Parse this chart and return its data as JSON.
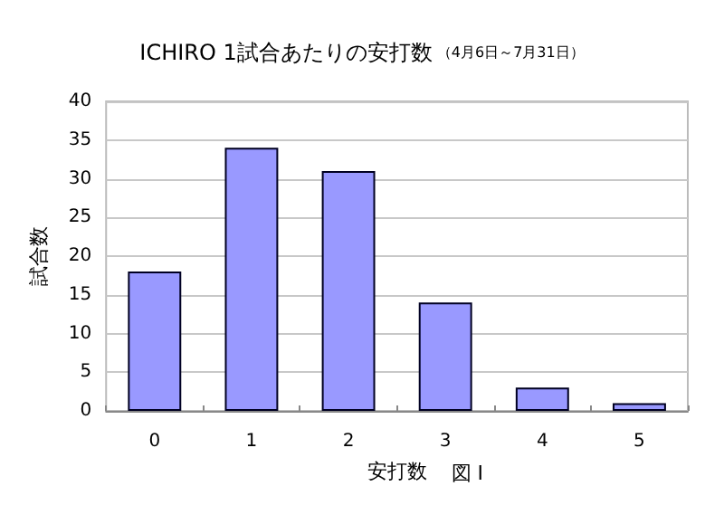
{
  "chart_data": {
    "type": "bar",
    "title": "ICHIRO 1試合あたりの安打数",
    "subtitle": "（4月6日～7月31日）",
    "xlabel": "安打数",
    "ylabel": "試合数",
    "annotations": [
      "図 I"
    ],
    "categories": [
      "0",
      "1",
      "2",
      "3",
      "4",
      "5"
    ],
    "values": [
      18,
      34,
      31,
      14,
      3,
      1
    ],
    "color": "#9999ff",
    "ylim": [
      0,
      40
    ],
    "yticks": [
      0,
      5,
      10,
      15,
      20,
      25,
      30,
      35,
      40
    ],
    "grid": "y"
  }
}
